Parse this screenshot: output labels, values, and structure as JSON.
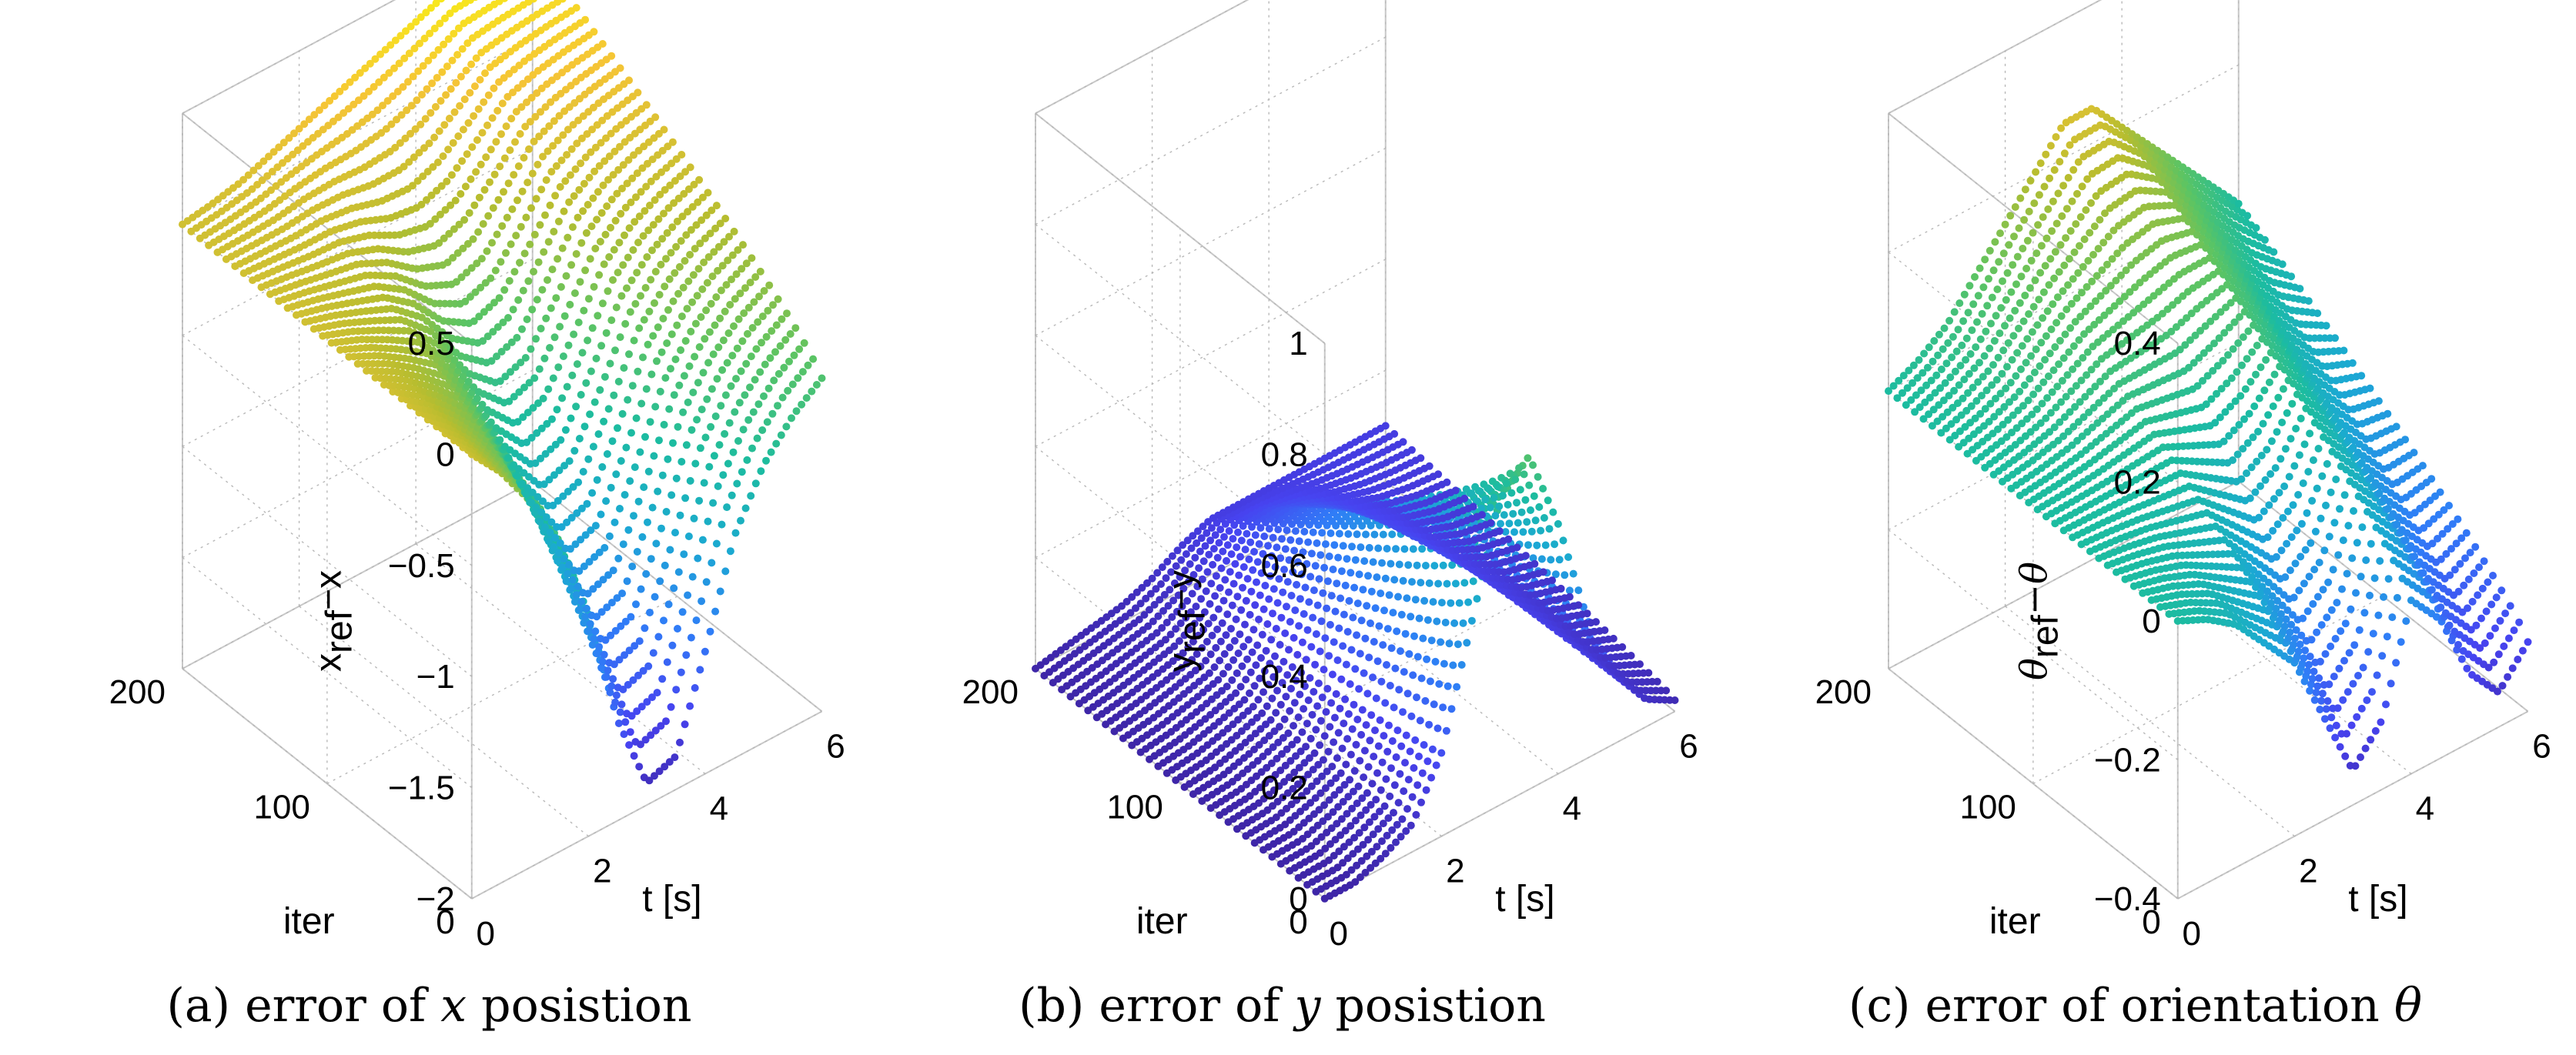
{
  "chart_data": [
    {
      "type": "scatter",
      "id": "a",
      "caption": {
        "prefix": "(a) error of ",
        "var": "x",
        "suffix": " posistion"
      },
      "zlabel": {
        "main": "x",
        "sub": "ref",
        "rest": "−x"
      },
      "xlabel": "t [s]",
      "ylabel": "iter",
      "xlim": [
        0,
        6
      ],
      "ylim": [
        0,
        200
      ],
      "zlim": [
        -2,
        0.5
      ],
      "xticks": [
        "0",
        "2",
        "4",
        "6"
      ],
      "yticks": [
        "0",
        "100",
        "200"
      ],
      "zticks": [
        "−2",
        "−1.5",
        "−1",
        "−0.5",
        "0",
        "0.5"
      ],
      "surface": {
        "x": [
          0,
          0.5,
          1,
          1.5,
          2,
          2.5,
          3,
          3.5,
          4,
          4.5,
          5,
          5.5,
          6
        ],
        "first_iter": [
          0,
          -0.15,
          -0.35,
          -0.6,
          -1.0,
          -1.55,
          -1.9,
          -1.85,
          -1.45,
          -1.0,
          -0.75,
          -0.6,
          -0.5
        ],
        "last_iter": [
          0,
          0.02,
          0.05,
          0.1,
          0.15,
          0.2,
          0.25,
          0.3,
          0.35,
          0.4,
          0.4,
          0.4,
          0.4
        ]
      }
    },
    {
      "type": "scatter",
      "id": "b",
      "caption": {
        "prefix": "(b) error of ",
        "var": "y",
        "suffix": " posistion"
      },
      "zlabel": {
        "main": "y",
        "sub": "ref",
        "rest": "−y"
      },
      "xlabel": "t [s]",
      "ylabel": "iter",
      "xlim": [
        0,
        6
      ],
      "ylim": [
        0,
        200
      ],
      "zlim": [
        0,
        1
      ],
      "xticks": [
        "0",
        "2",
        "4",
        "6"
      ],
      "yticks": [
        "0",
        "100",
        "200"
      ],
      "zticks": [
        "0",
        "0.2",
        "0.4",
        "0.6",
        "0.8",
        "1"
      ],
      "surface": {
        "x": [
          0,
          0.5,
          1,
          1.5,
          2,
          2.5,
          3,
          3.5,
          4,
          4.5,
          5,
          5.5,
          6
        ],
        "first_iter": [
          0,
          0,
          0.02,
          0.05,
          0.15,
          0.35,
          0.55,
          0.6,
          0.45,
          0.25,
          0.12,
          0.05,
          0.02
        ],
        "last_iter": [
          0,
          0.01,
          0.02,
          0.03,
          0.05,
          0.08,
          0.1,
          0.1,
          0.1,
          0.1,
          0.1,
          0.1,
          0.1
        ]
      }
    },
    {
      "type": "scatter",
      "id": "c",
      "caption": {
        "prefix": "(c) error of orientation ",
        "var": "θ",
        "suffix": ""
      },
      "zlabel": {
        "main": "θ",
        "sub": "ref",
        "rest": "−θ"
      },
      "xlabel": "t [s]",
      "ylabel": "iter",
      "xlim": [
        0,
        6
      ],
      "ylim": [
        0,
        200
      ],
      "zlim": [
        -0.4,
        0.4
      ],
      "xticks": [
        "0",
        "2",
        "4",
        "6"
      ],
      "yticks": [
        "0",
        "100",
        "200"
      ],
      "zticks": [
        "−0.4",
        "−0.2",
        "0",
        "0.2",
        "0.4"
      ],
      "surface": {
        "x": [
          0,
          0.5,
          1,
          1.5,
          2,
          2.5,
          3,
          3.5,
          4,
          4.5,
          5,
          5.5,
          6
        ],
        "first_iter": [
          0,
          -0.02,
          -0.05,
          -0.1,
          -0.15,
          -0.25,
          -0.35,
          -0.3,
          -0.15,
          -0.2,
          -0.3,
          -0.35,
          -0.3
        ],
        "last_iter": [
          0,
          0.02,
          0.05,
          0.1,
          0.15,
          0.2,
          0.25,
          0.25,
          0.2,
          0.15,
          0.1,
          0.05,
          0.0
        ]
      }
    }
  ],
  "colormap": [
    "#3e26a8",
    "#4743f0",
    "#2f7ef7",
    "#1ba9d2",
    "#1cbca0",
    "#5cc463",
    "#b7bd2f",
    "#f5c436",
    "#f9fb0e"
  ]
}
